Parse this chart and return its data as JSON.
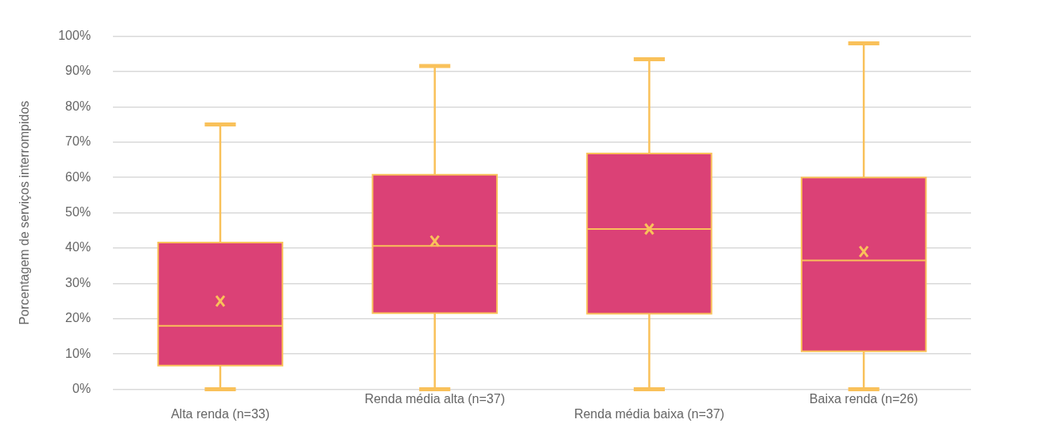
{
  "chart_data": {
    "type": "box",
    "ylabel": "Porcentagem de serviços interrompidos",
    "categories": [
      "Alta renda (n=33)",
      "Renda média alta (n=37)",
      "Renda média baixa (n=37)",
      "Baixa renda (n=26)"
    ],
    "boxes": [
      {
        "low": 0,
        "q1": 6.7,
        "median": 18,
        "q3": 41.6,
        "high": 75,
        "mean": 25
      },
      {
        "low": 0,
        "q1": 21.6,
        "median": 40.6,
        "q3": 60.8,
        "high": 91.6,
        "mean": 42
      },
      {
        "low": 0,
        "q1": 21.4,
        "median": 45.4,
        "q3": 66.8,
        "high": 93.5,
        "mean": 45.4
      },
      {
        "low": 0,
        "q1": 10.8,
        "median": 36.5,
        "q3": 60,
        "high": 98,
        "mean": 39
      }
    ],
    "color": "#db4176",
    "marker": "cross",
    "ylim": [
      0,
      100
    ],
    "yticks": [
      {
        "value": 0,
        "label": "0%"
      },
      {
        "value": 10,
        "label": "10%"
      },
      {
        "value": 20,
        "label": "20%"
      },
      {
        "value": 30,
        "label": "30%"
      },
      {
        "value": 40,
        "label": "40%"
      },
      {
        "value": 50,
        "label": "50%"
      },
      {
        "value": 60,
        "label": "60%"
      },
      {
        "value": 70,
        "label": "70%"
      },
      {
        "value": 80,
        "label": "80%"
      },
      {
        "value": 90,
        "label": "90%"
      },
      {
        "value": 100,
        "label": "100%"
      }
    ],
    "grid": "y",
    "legend": false
  }
}
